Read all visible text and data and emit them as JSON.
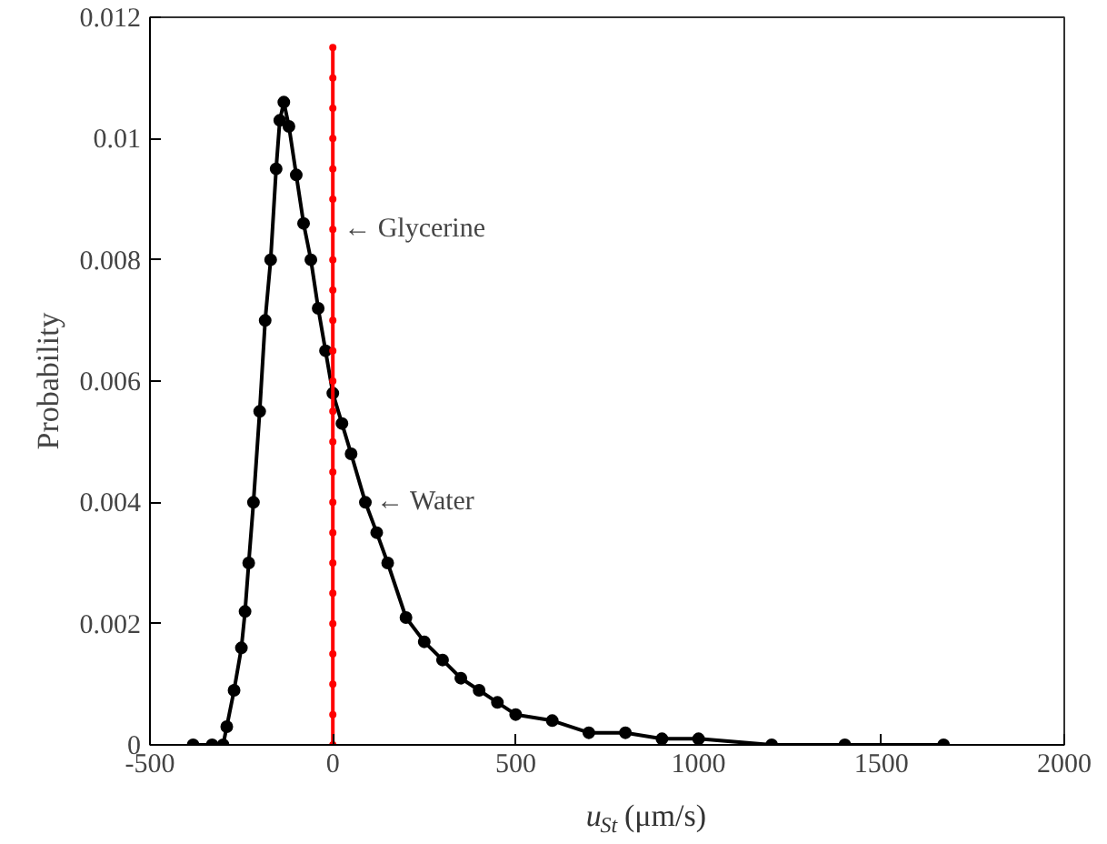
{
  "chart_data": {
    "type": "line",
    "xlabel": "u$_{St}$ (μm/s)",
    "ylabel": "Probability",
    "xlim": [
      -500,
      2000
    ],
    "xticks": [
      -500,
      0,
      500,
      1000,
      1500,
      2000
    ],
    "ylim": [
      0,
      0.012
    ],
    "yticks": [
      0,
      0.002,
      0.004,
      0.006,
      0.008,
      0.01,
      0.012
    ],
    "grid": false,
    "marker": "circle",
    "line_style": "solid",
    "series": [
      {
        "color": "#000000",
        "x": [
          -382,
          -330,
          -300,
          -290,
          -270,
          -250,
          -240,
          -230,
          -217,
          -200,
          -185,
          -170,
          -155,
          -145,
          -134,
          -120,
          -100,
          -80,
          -60,
          -40,
          -20,
          0,
          25,
          50,
          89,
          120,
          150,
          200,
          250,
          300,
          350,
          400,
          450,
          500,
          600,
          700,
          800,
          900,
          1000,
          1200,
          1400,
          1670
        ],
        "values": [
          0,
          0,
          0,
          0.0003,
          0.0009,
          0.0016,
          0.0022,
          0.003,
          0.004,
          0.0055,
          0.007,
          0.008,
          0.0095,
          0.0103,
          0.0106,
          0.0102,
          0.0094,
          0.0086,
          0.008,
          0.0072,
          0.0065,
          0.0058,
          0.0053,
          0.0048,
          0.004,
          0.0035,
          0.003,
          0.0021,
          0.0017,
          0.0014,
          0.0011,
          0.0009,
          0.0007,
          0.0005,
          0.0004,
          0.0002,
          0.0002,
          0.0001,
          0.0001,
          0,
          0,
          0
        ]
      },
      {
        "color": "#ff0000",
        "x": [
          0,
          0,
          0,
          0,
          0,
          0,
          0,
          0,
          0,
          0,
          0,
          0,
          0,
          0,
          0,
          0,
          0,
          0,
          0,
          0,
          0,
          0,
          0,
          0
        ],
        "values": [
          0,
          0.0005,
          0.001,
          0.0015,
          0.002,
          0.0025,
          0.003,
          0.0035,
          0.004,
          0.0045,
          0.005,
          0.0055,
          0.006,
          0.0065,
          0.007,
          0.0075,
          0.008,
          0.0085,
          0.009,
          0.0095,
          0.01,
          0.0105,
          0.011,
          0.0115
        ]
      }
    ],
    "annotations": [
      {
        "text": "← Glycerine",
        "x": 0,
        "y": 0.0085
      },
      {
        "text": "← Water",
        "x": 89,
        "y": 0.004
      }
    ]
  }
}
